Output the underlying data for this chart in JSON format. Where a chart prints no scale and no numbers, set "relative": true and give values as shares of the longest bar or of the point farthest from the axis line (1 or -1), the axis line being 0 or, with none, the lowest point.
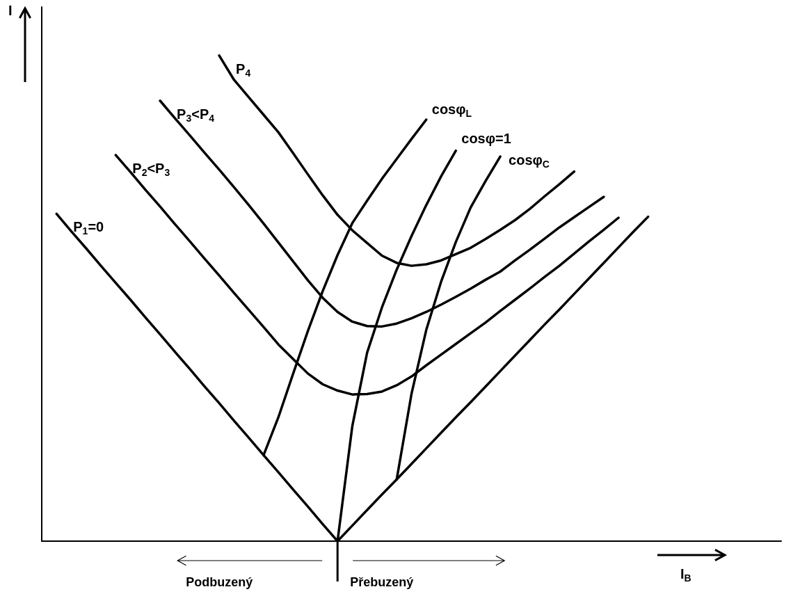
{
  "chart_data": {
    "type": "line",
    "relative": true,
    "xlabel": "I$_{B}$",
    "ylabel": "I",
    "legend": false,
    "grid": false,
    "marker": "none",
    "line_style": "solid",
    "annotations": [
      "Podbuzený",
      "Přebuzený"
    ],
    "categories": [
      null,
      null,
      null,
      null,
      null,
      null,
      null,
      null,
      null,
      null,
      null,
      null,
      null,
      null,
      null,
      null,
      null,
      null,
      null,
      null,
      null,
      null,
      null,
      null,
      null,
      null,
      null,
      null,
      null,
      null,
      null,
      null,
      null,
      null,
      null,
      null,
      null,
      null,
      null,
      null,
      null,
      null,
      null,
      null,
      null,
      null,
      null,
      null,
      null,
      null,
      null
    ],
    "series": [
      {
        "name": "P$_{1}$=0",
        "color": "#000000",
        "values": [
          null,
          0.674,
          0.638,
          0.603,
          0.567,
          0.532,
          0.497,
          0.461,
          0.426,
          0.39,
          0.355,
          0.319,
          0.284,
          0.248,
          0.213,
          0.177,
          0.142,
          0.106,
          0.071,
          0.035,
          0,
          0.032,
          0.064,
          0.096,
          0.127,
          0.159,
          0.191,
          0.223,
          0.255,
          0.286,
          0.318,
          0.35,
          0.382,
          0.414,
          0.446,
          0.477,
          0.509,
          0.541,
          0.573,
          0.605,
          0.637,
          0.668,
          null,
          null,
          null,
          null,
          null,
          null,
          null,
          null,
          null
        ]
      },
      {
        "name": "P$_{2}$<P$_{3}$",
        "color": "#000000",
        "values": [
          null,
          null,
          null,
          null,
          null,
          0.795,
          0.76,
          0.724,
          0.689,
          0.653,
          0.618,
          0.582,
          0.547,
          0.511,
          0.476,
          0.441,
          0.405,
          0.375,
          0.345,
          0.323,
          0.31,
          0.302,
          0.303,
          0.308,
          0.321,
          0.339,
          0.362,
          0.384,
          0.406,
          0.428,
          0.45,
          0.474,
          0.497,
          0.52,
          0.544,
          0.567,
          0.592,
          0.617,
          0.641,
          0.666,
          null,
          null,
          null,
          null,
          null,
          null,
          null,
          null,
          null,
          null,
          null
        ]
      },
      {
        "name": "P$_{3}$<P$_{4}$",
        "color": "#000000",
        "values": [
          null,
          null,
          null,
          null,
          null,
          null,
          null,
          null,
          0.907,
          0.871,
          0.836,
          0.8,
          0.765,
          0.729,
          0.692,
          0.654,
          0.615,
          0.576,
          0.537,
          0.501,
          0.472,
          0.452,
          0.443,
          0.442,
          0.448,
          0.459,
          0.472,
          0.487,
          0.503,
          0.52,
          0.538,
          0.555,
          0.578,
          0.6,
          0.623,
          0.646,
          0.667,
          0.688,
          0.709,
          null,
          null,
          null,
          null,
          null,
          null,
          null,
          null,
          null,
          null,
          null,
          null
        ]
      },
      {
        "name": "P$_{4}$",
        "color": "#000000",
        "values": [
          null,
          null,
          null,
          null,
          null,
          null,
          null,
          null,
          null,
          null,
          null,
          null,
          1,
          0.95,
          0.914,
          0.878,
          0.842,
          0.799,
          0.755,
          0.712,
          0.672,
          0.64,
          0.614,
          0.588,
          0.573,
          0.567,
          0.57,
          0.578,
          0.591,
          0.604,
          0.622,
          0.641,
          0.661,
          0.684,
          0.71,
          0.735,
          0.761,
          null,
          null,
          null,
          null,
          null,
          null,
          null,
          null,
          null,
          null,
          null,
          null,
          null,
          null
        ]
      },
      {
        "name": "cosφ$_{L}$",
        "color": "#000000",
        "values": [
          null,
          null,
          null,
          null,
          null,
          null,
          null,
          null,
          null,
          null,
          null,
          null,
          null,
          null,
          null,
          0.177,
          0.255,
          0.345,
          0.433,
          0.515,
          0.589,
          0.655,
          0.701,
          0.746,
          0.787,
          0.828,
          0.868,
          null,
          null,
          null,
          null,
          null,
          null,
          null,
          null,
          null,
          null,
          null,
          null,
          null,
          null,
          null,
          null,
          null,
          null,
          null,
          null,
          null,
          null,
          null,
          null
        ]
      },
      {
        "name": "cosφ=1",
        "color": "#000000",
        "values": [
          null,
          null,
          null,
          null,
          null,
          null,
          null,
          null,
          null,
          null,
          null,
          null,
          null,
          null,
          null,
          null,
          null,
          null,
          null,
          null,
          0,
          0.237,
          0.388,
          0.481,
          0.559,
          0.628,
          0.692,
          0.751,
          0.804,
          null,
          null,
          null,
          null,
          null,
          null,
          null,
          null,
          null,
          null,
          null,
          null,
          null,
          null,
          null,
          null,
          null,
          null,
          null,
          null,
          null,
          null
        ]
      },
      {
        "name": "cosφ$_{C}$",
        "color": "#000000",
        "values": [
          null,
          null,
          null,
          null,
          null,
          null,
          null,
          null,
          null,
          null,
          null,
          null,
          null,
          null,
          null,
          null,
          null,
          null,
          null,
          null,
          null,
          null,
          null,
          null,
          0.127,
          0.303,
          0.435,
          0.534,
          0.616,
          0.687,
          0.741,
          0.792,
          null,
          null,
          null,
          null,
          null,
          null,
          null,
          null,
          null,
          null,
          null,
          null,
          null,
          null,
          null,
          null,
          null,
          null,
          null
        ]
      }
    ]
  }
}
